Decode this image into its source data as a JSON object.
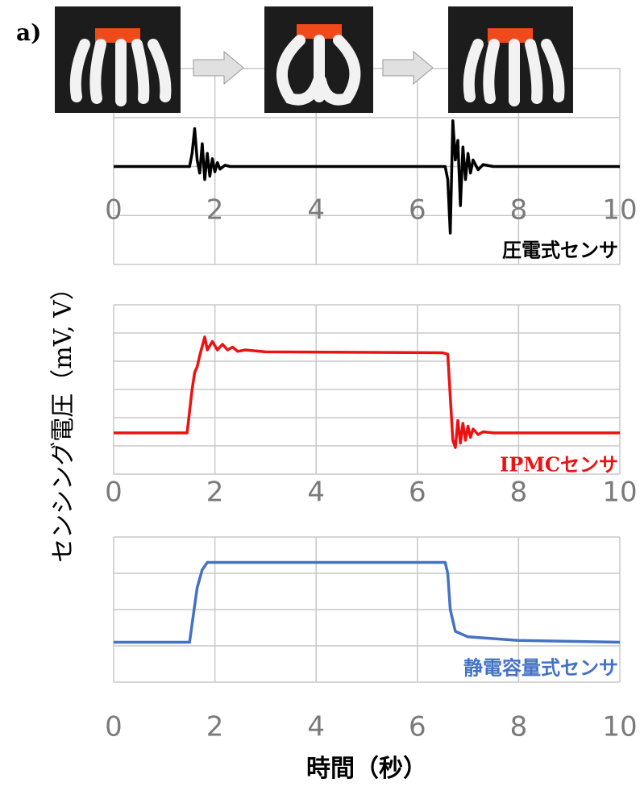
{
  "panel_label": "a)",
  "ylabel": "センシング電圧（mV, V）",
  "xlabel": "時間（秒）",
  "chart_data": [
    {
      "type": "line",
      "xlim": [
        0,
        10
      ],
      "xticks": [
        0,
        2,
        4,
        6,
        8,
        10
      ],
      "ylim": [
        -1.5,
        1.5
      ],
      "grid": true,
      "x": [
        0,
        1.5,
        1.55,
        1.6,
        1.65,
        1.7,
        1.75,
        1.8,
        1.85,
        1.9,
        1.95,
        2.0,
        2.05,
        2.1,
        2.2,
        2.3,
        6.55,
        6.6,
        6.65,
        6.7,
        6.75,
        6.8,
        6.85,
        6.9,
        6.95,
        7.0,
        7.05,
        7.1,
        7.2,
        7.3,
        7.5,
        10
      ],
      "series": [
        {
          "name": "圧電式センサ",
          "color": "#000000",
          "values": [
            0,
            0,
            0.2,
            0.58,
            0.1,
            -0.1,
            0.35,
            -0.2,
            0.2,
            -0.15,
            0.12,
            -0.08,
            0.06,
            -0.04,
            0.02,
            0,
            0,
            -0.2,
            -1.02,
            0.7,
            0.1,
            0.4,
            -0.6,
            0.3,
            -0.2,
            0.2,
            -0.1,
            0.1,
            -0.05,
            0.03,
            0,
            0
          ]
        }
      ]
    },
    {
      "type": "line",
      "xlim": [
        0,
        10
      ],
      "xticks": [
        0,
        2,
        4,
        6,
        8,
        10
      ],
      "ylim": [
        0,
        6
      ],
      "grid": true,
      "x": [
        0,
        1.45,
        1.55,
        1.6,
        1.65,
        1.7,
        1.8,
        1.85,
        1.95,
        2.05,
        2.15,
        2.25,
        2.35,
        2.45,
        2.6,
        3,
        6.5,
        6.6,
        6.7,
        6.75,
        6.8,
        6.85,
        6.9,
        6.95,
        7.0,
        7.05,
        7.1,
        7.2,
        7.3,
        7.5,
        10
      ],
      "series": [
        {
          "name": "IPMCセンサ",
          "color": "#ee1111",
          "values": [
            1.46,
            1.46,
            3,
            3.6,
            3.8,
            4.2,
            4.86,
            4.4,
            4.7,
            4.4,
            4.6,
            4.4,
            4.5,
            4.35,
            4.4,
            4.33,
            4.3,
            4.25,
            1.2,
            0.94,
            1.9,
            1.1,
            1.8,
            1.2,
            1.7,
            1.3,
            1.6,
            1.4,
            1.5,
            1.46,
            1.46
          ]
        }
      ]
    },
    {
      "type": "line",
      "xlim": [
        0,
        10
      ],
      "xticks": [
        0,
        2,
        4,
        6,
        8,
        10
      ],
      "ylim": [
        0,
        4
      ],
      "grid": true,
      "x": [
        0,
        1.5,
        1.55,
        1.65,
        1.75,
        1.85,
        2,
        4,
        6,
        6.55,
        6.6,
        6.65,
        6.75,
        7,
        8,
        10
      ],
      "series": [
        {
          "name": "静電容量式センサ",
          "color": "#4472c4",
          "values": [
            1.1,
            1.1,
            1.6,
            2.6,
            3.1,
            3.3,
            3.3,
            3.3,
            3.3,
            3.3,
            3.0,
            2.0,
            1.4,
            1.25,
            1.15,
            1.1
          ]
        }
      ]
    }
  ]
}
